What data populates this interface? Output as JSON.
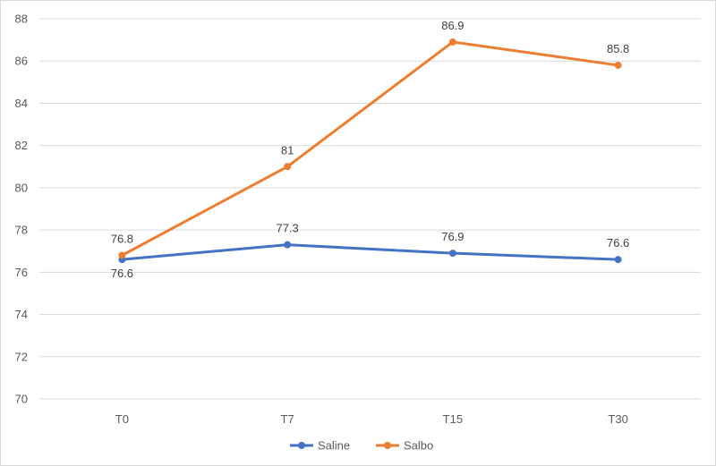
{
  "chart_data": {
    "type": "line",
    "categories": [
      "T0",
      "T7",
      "T15",
      "T30"
    ],
    "series": [
      {
        "name": "Saline",
        "values": [
          76.6,
          77.3,
          76.9,
          76.6
        ],
        "labels": [
          "76.6",
          "77.3",
          "76.9",
          "76.6"
        ],
        "color": "#4472C4"
      },
      {
        "name": "Salbo",
        "values": [
          76.8,
          81,
          86.9,
          85.8
        ],
        "labels": [
          "76.8",
          "81",
          "86.9",
          "85.8"
        ],
        "color": "#ED7D31"
      }
    ],
    "y_ticks": [
      "70",
      "72",
      "74",
      "76",
      "78",
      "80",
      "82",
      "84",
      "86",
      "88"
    ],
    "ylim": [
      70,
      88
    ],
    "grid": true,
    "gridline_color": "#d9d9d9",
    "legend_position": "bottom",
    "title": "",
    "xlabel": "",
    "ylabel": ""
  }
}
